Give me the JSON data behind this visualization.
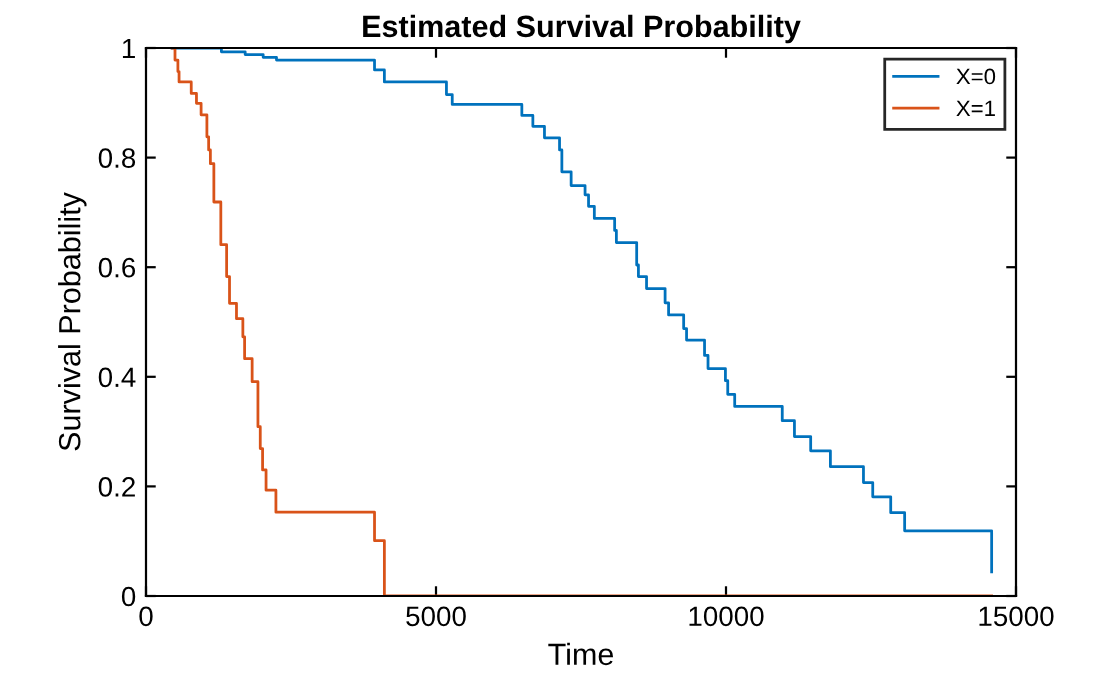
{
  "chart_data": {
    "type": "step",
    "title": "Estimated Survival Probability",
    "xlabel": "Time",
    "ylabel": "Survival Probability",
    "series": [
      {
        "name": "X=0",
        "color": "#0072bd",
        "x": [
          450,
          1300,
          1710,
          2020,
          2250,
          3940,
          4110,
          5180,
          5280,
          6480,
          6670,
          6870,
          7130,
          7170,
          7330,
          7570,
          7630,
          7730,
          8080,
          8110,
          8460,
          8490,
          8630,
          8950,
          9010,
          9270,
          9320,
          9630,
          9690,
          9990,
          10030,
          10150,
          10970,
          11180,
          11460,
          11800,
          12370,
          12530,
          12840,
          13080,
          14580
        ],
        "values": [
          1,
          0.993,
          0.988,
          0.983,
          0.978,
          0.96,
          0.938,
          0.915,
          0.897,
          0.877,
          0.857,
          0.836,
          0.814,
          0.774,
          0.749,
          0.732,
          0.711,
          0.689,
          0.667,
          0.645,
          0.604,
          0.583,
          0.561,
          0.535,
          0.513,
          0.488,
          0.467,
          0.439,
          0.415,
          0.393,
          0.368,
          0.346,
          0.32,
          0.291,
          0.265,
          0.236,
          0.207,
          0.181,
          0.152,
          0.119,
          0.044
        ]
      },
      {
        "name": "X=1",
        "color": "#d95319",
        "x": [
          450,
          500,
          550,
          570,
          780,
          870,
          950,
          1050,
          1080,
          1110,
          1170,
          1290,
          1390,
          1440,
          1560,
          1670,
          1700,
          1830,
          1930,
          1970,
          2010,
          2070,
          2240,
          3940,
          4110,
          14580
        ],
        "values": [
          1,
          0.978,
          0.957,
          0.938,
          0.917,
          0.899,
          0.878,
          0.838,
          0.814,
          0.789,
          0.719,
          0.641,
          0.583,
          0.534,
          0.506,
          0.473,
          0.433,
          0.391,
          0.309,
          0.269,
          0.23,
          0.193,
          0.153,
          0.101,
          0,
          0
        ]
      }
    ],
    "xlim": [
      0,
      15000
    ],
    "xticks": [
      0,
      5000,
      10000,
      15000
    ],
    "ylim": [
      0,
      1
    ],
    "yticks": [
      0,
      0.2,
      0.4,
      0.6,
      0.8,
      1
    ],
    "legend": "top right",
    "grid": false
  }
}
